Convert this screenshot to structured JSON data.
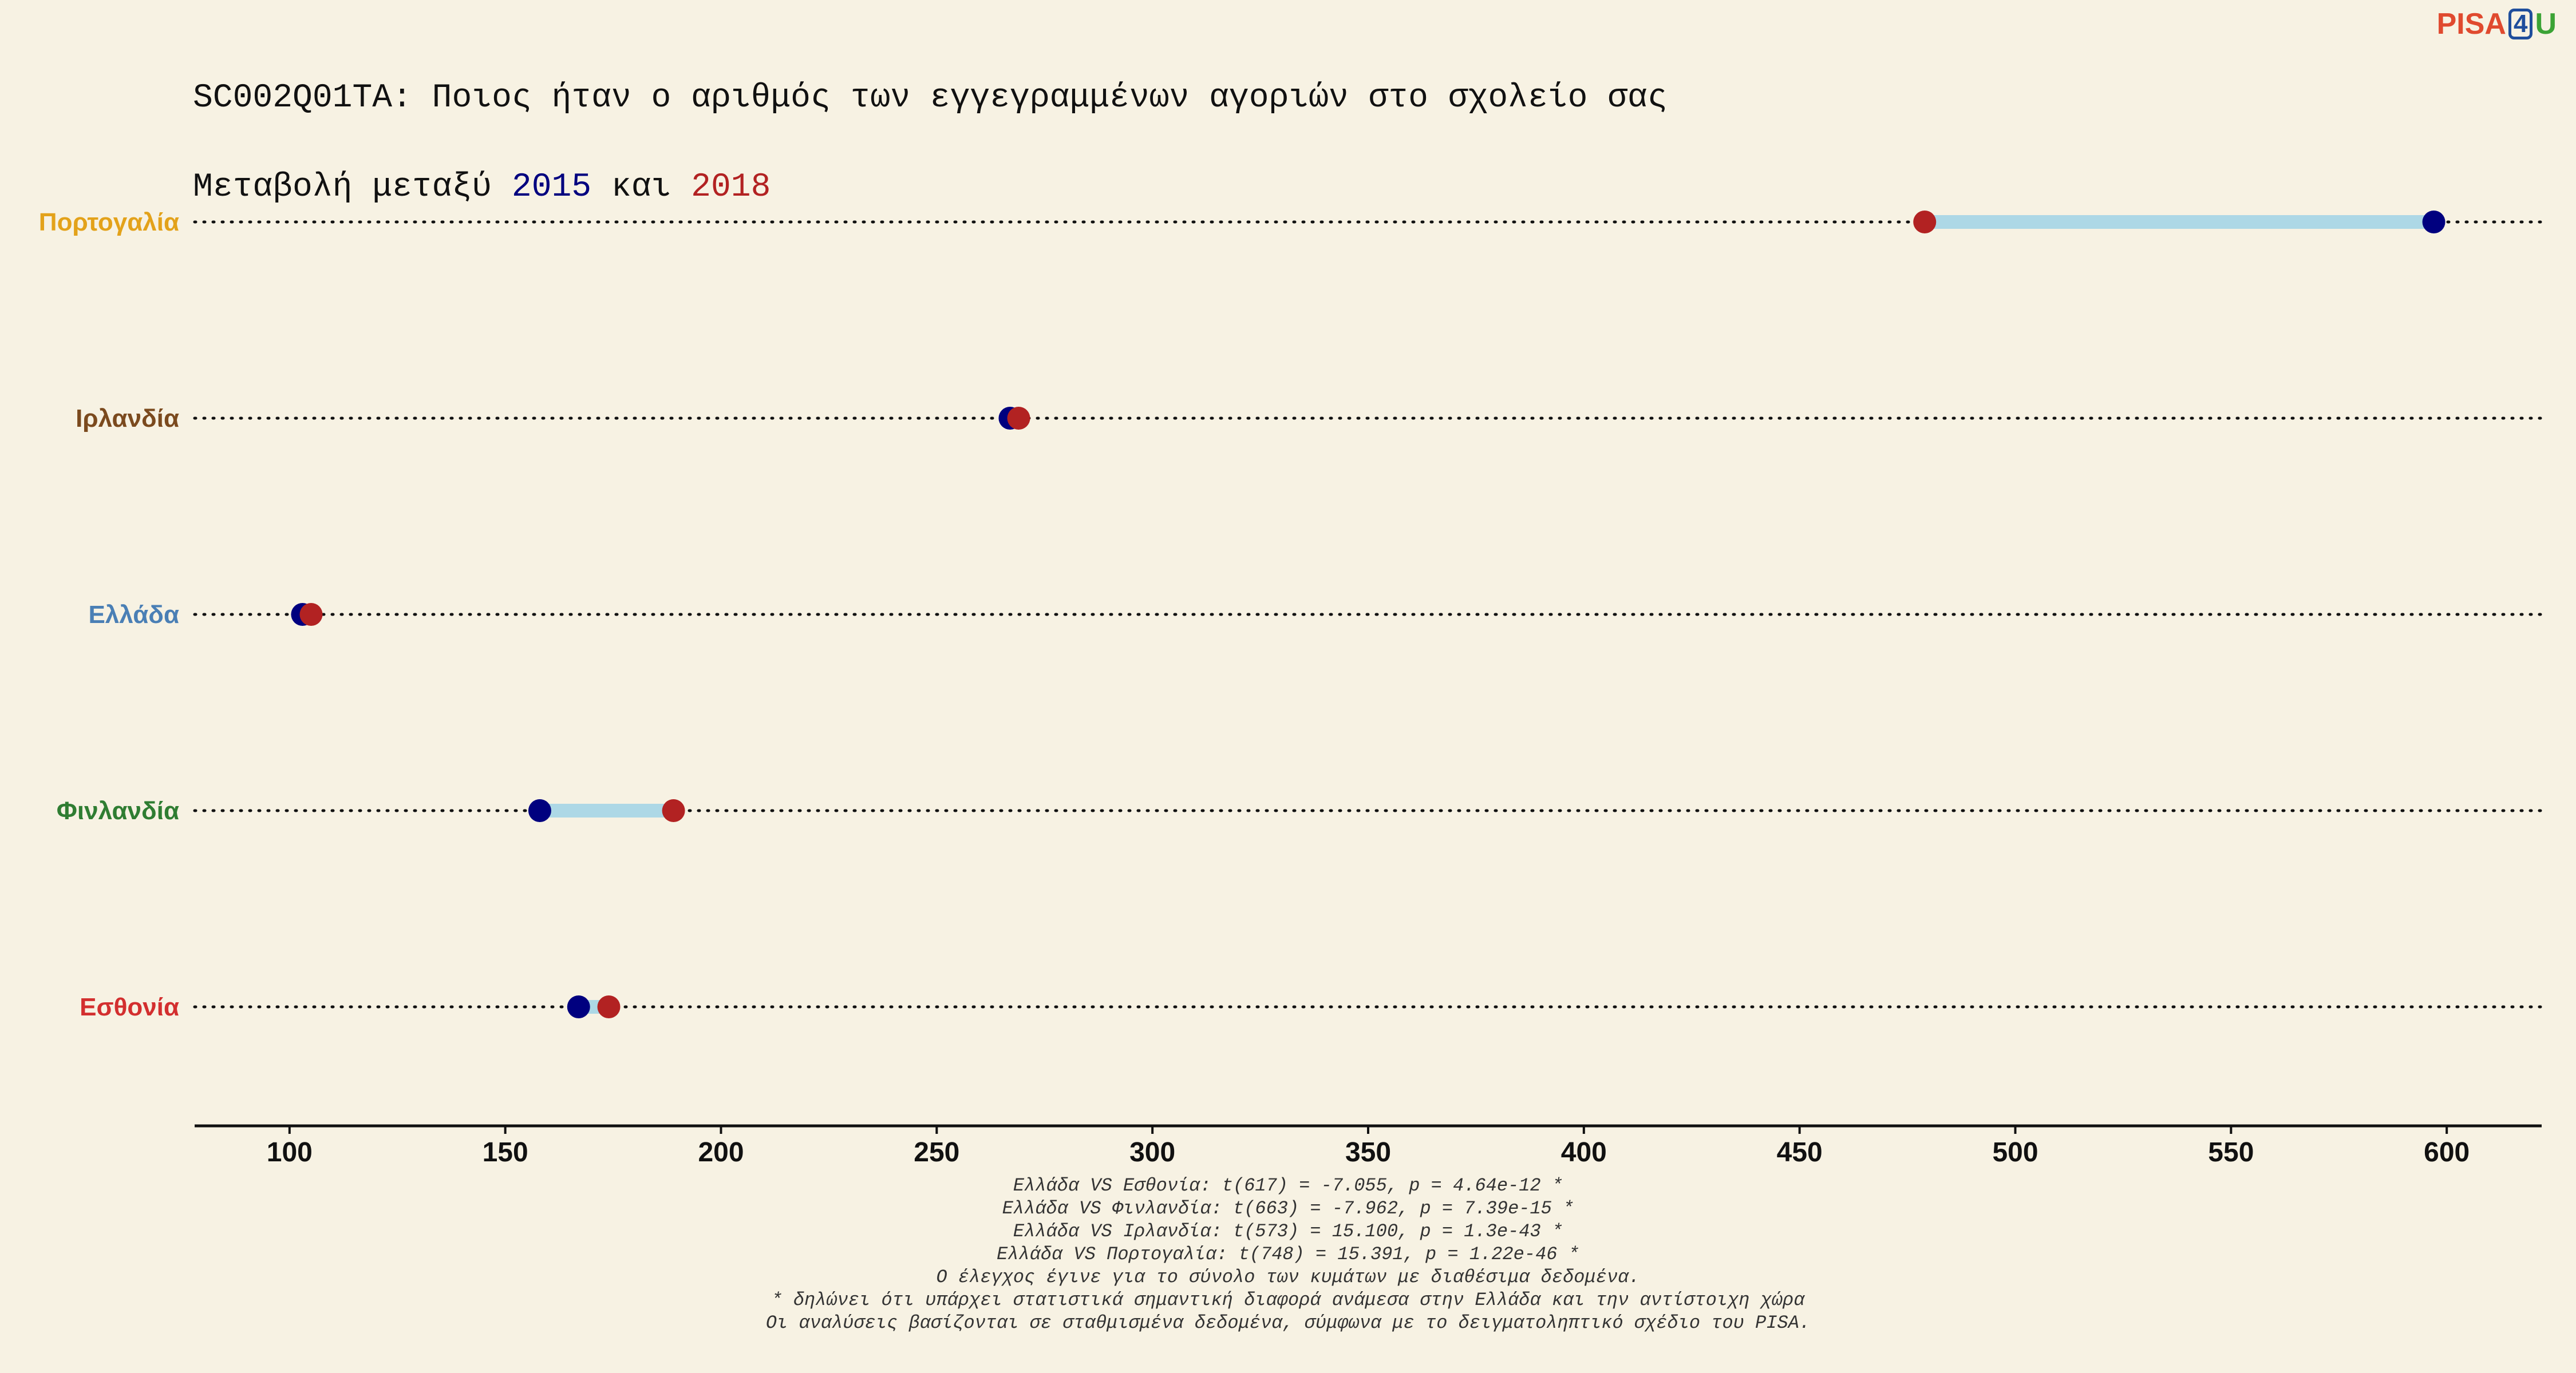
{
  "title": {
    "line1": "SC002Q01TA: Ποιος ήταν ο αριθμός των εγγεγραμμένων αγοριών στο σχολείο σας",
    "line2_prefix": "Μεταβολή μεταξύ ",
    "year1": "2015",
    "line2_mid": " και ",
    "year2": "2018"
  },
  "logo": {
    "part1": "PISA",
    "part2": "4",
    "part3": "U"
  },
  "chart_data": {
    "type": "dumbbell",
    "xlim": [
      78,
      622
    ],
    "xticks": [
      100,
      150,
      200,
      250,
      300,
      350,
      400,
      450,
      500,
      550,
      600
    ],
    "grid": false,
    "years": [
      "2015",
      "2018"
    ],
    "colors": {
      "2015": "#00007F",
      "2018": "#B22222",
      "connector": "#ADD8E6",
      "dots": "#111111"
    },
    "countries": [
      {
        "name": "Πορτογαλία",
        "color": "#E3A21A",
        "v2015": 597,
        "v2018": 479
      },
      {
        "name": "Ιρλανδία",
        "color": "#7B4A1E",
        "v2015": 267,
        "v2018": 269
      },
      {
        "name": "Ελλάδα",
        "color": "#4A7FB5",
        "v2015": 103,
        "v2018": 105
      },
      {
        "name": "Φινλανδία",
        "color": "#2F7D32",
        "v2015": 158,
        "v2018": 189
      },
      {
        "name": "Εσθονία",
        "color": "#D32F2F",
        "v2015": 167,
        "v2018": 174
      }
    ]
  },
  "notes": [
    "Ελλάδα VS Εσθονία: t(617) = -7.055, p = 4.64e-12 *",
    "Ελλάδα VS Φινλανδία: t(663) = -7.962, p = 7.39e-15 *",
    "Ελλάδα VS Ιρλανδία: t(573) = 15.100, p = 1.3e-43 *",
    "Ελλάδα VS Πορτογαλία: t(748) = 15.391, p = 1.22e-46 *",
    "Ο έλεγχος έγινε για το σύνολο των κυμάτων με διαθέσιμα δεδομένα.",
    "* δηλώνει ότι υπάρχει στατιστικά σημαντική διαφορά ανάμεσα στην Ελλάδα και την αντίστοιχη χώρα",
    "Οι αναλύσεις βασίζονται σε σταθμισμένα δεδομένα, σύμφωνα με το δειγματοληπτικό σχέδιο του PISA."
  ]
}
